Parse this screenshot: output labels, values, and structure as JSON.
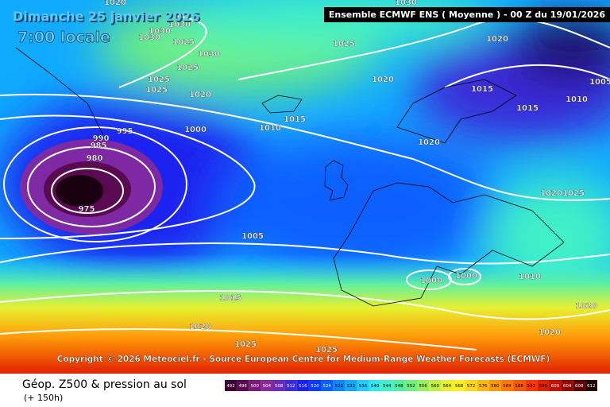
{
  "header": {
    "date": "Dimanche 25 janvier 2026",
    "time": "7:00 locale",
    "model": "Ensemble ECMWF ENS  ( Moyenne )  -  00 Z du 19/01/2026"
  },
  "copyright": "Copyright © 2026 Meteociel.fr - Source European Centre for Medium-Range Weather Forecasts (ECMWF)",
  "footer": {
    "title": "Géop. Z500 & pression au sol",
    "subtitle": "(+ 150h)"
  },
  "isobar_labels": [
    1020,
    1030,
    1030,
    1030,
    1025,
    1030,
    1025,
    1025,
    1020,
    1030,
    1025,
    1025,
    1020,
    1020,
    1015,
    1015,
    1010,
    1005,
    995,
    1000,
    1010,
    1015,
    990,
    985,
    980,
    975,
    1020,
    1020,
    1025,
    1005,
    1000,
    1000,
    1010,
    1015,
    1020,
    1020,
    1020,
    1025,
    1025
  ],
  "scale": {
    "values": [
      492,
      496,
      500,
      504,
      508,
      512,
      516,
      520,
      524,
      528,
      532,
      536,
      540,
      544,
      548,
      552,
      556,
      560,
      564,
      568,
      572,
      576,
      580,
      584,
      588,
      592,
      596,
      600,
      604,
      608,
      612
    ],
    "colors": [
      "#3a0030",
      "#5a0a50",
      "#7a1a78",
      "#8a2a9a",
      "#6a2ab8",
      "#3a2ad8",
      "#1a20f0",
      "#0a3cff",
      "#0a60ff",
      "#0a88ff",
      "#10aaff",
      "#20ccff",
      "#30e8f0",
      "#40f0c8",
      "#50f0a0",
      "#70f080",
      "#98f060",
      "#c0f040",
      "#e8f030",
      "#fff020",
      "#ffd818",
      "#ffb810",
      "#ff9808",
      "#ff7800",
      "#ff5800",
      "#f83800",
      "#e02000",
      "#c01000",
      "#900800",
      "#600000",
      "#200000"
    ]
  }
}
